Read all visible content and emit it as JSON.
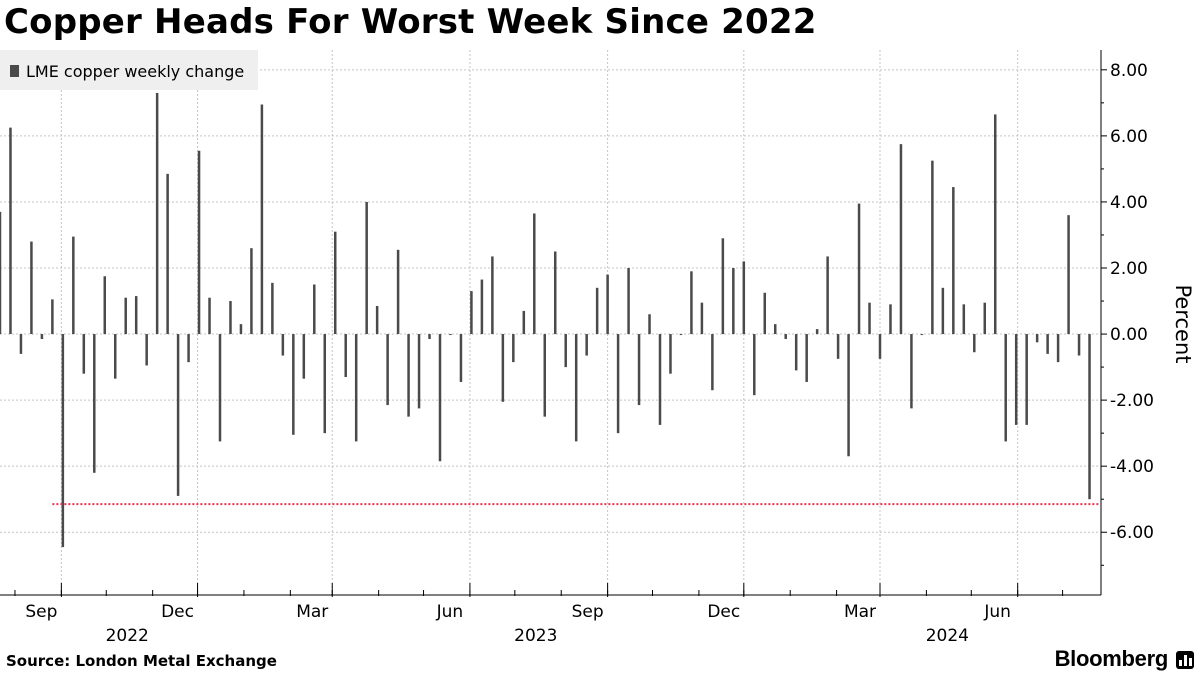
{
  "chart_data": {
    "type": "bar",
    "title": "Copper Heads For Worst Week Since 2022",
    "ylabel": "Percent",
    "source": "Source: London Metal Exchange",
    "brand": "Bloomberg",
    "legend": {
      "label": "LME copper weekly change",
      "placement": "top-left"
    },
    "ylim": [
      -7.9,
      8.6
    ],
    "xlim": [
      "2022-07-22",
      "2024-07-26"
    ],
    "y_ticks": [
      -6,
      -4,
      -2,
      0,
      2,
      4,
      6,
      8
    ],
    "y_tick_labels": [
      "-6.00",
      "-4.00",
      "-2.00",
      "0.00",
      "2.00",
      "4.00",
      "6.00",
      "8.00"
    ],
    "x_ticks": [
      {
        "date": "2022-09-01",
        "label": "Sep"
      },
      {
        "date": "2022-12-01",
        "label": "Dec"
      },
      {
        "date": "2023-03-01",
        "label": "Mar"
      },
      {
        "date": "2023-06-01",
        "label": "Jun"
      },
      {
        "date": "2023-09-01",
        "label": "Sep"
      },
      {
        "date": "2023-12-01",
        "label": "Dec"
      },
      {
        "date": "2024-03-01",
        "label": "Mar"
      },
      {
        "date": "2024-06-01",
        "label": "Jun"
      }
    ],
    "year_labels": [
      {
        "date": "2022-10-15",
        "label": "2022"
      },
      {
        "date": "2023-07-15",
        "label": "2023"
      },
      {
        "date": "2024-04-15",
        "label": "2024"
      }
    ],
    "grid": true,
    "reference_line": {
      "value": -5.15,
      "start": "2022-08-26",
      "color": "#e8334a"
    },
    "bar_color": "#4a4a4a",
    "x": [
      "2022-07-22",
      "2022-07-29",
      "2022-08-05",
      "2022-08-12",
      "2022-08-19",
      "2022-08-26",
      "2022-09-02",
      "2022-09-09",
      "2022-09-16",
      "2022-09-23",
      "2022-09-30",
      "2022-10-07",
      "2022-10-14",
      "2022-10-21",
      "2022-10-28",
      "2022-11-04",
      "2022-11-11",
      "2022-11-18",
      "2022-11-25",
      "2022-12-02",
      "2022-12-09",
      "2022-12-16",
      "2022-12-23",
      "2022-12-30",
      "2023-01-06",
      "2023-01-13",
      "2023-01-20",
      "2023-01-27",
      "2023-02-03",
      "2023-02-10",
      "2023-02-17",
      "2023-02-24",
      "2023-03-03",
      "2023-03-10",
      "2023-03-17",
      "2023-03-24",
      "2023-03-31",
      "2023-04-07",
      "2023-04-14",
      "2023-04-21",
      "2023-04-28",
      "2023-05-05",
      "2023-05-12",
      "2023-05-19",
      "2023-05-26",
      "2023-06-02",
      "2023-06-09",
      "2023-06-16",
      "2023-06-23",
      "2023-06-30",
      "2023-07-07",
      "2023-07-14",
      "2023-07-21",
      "2023-07-28",
      "2023-08-04",
      "2023-08-11",
      "2023-08-18",
      "2023-08-25",
      "2023-09-01",
      "2023-09-08",
      "2023-09-15",
      "2023-09-22",
      "2023-09-29",
      "2023-10-06",
      "2023-10-13",
      "2023-10-20",
      "2023-10-27",
      "2023-11-03",
      "2023-11-10",
      "2023-11-17",
      "2023-11-24",
      "2023-12-01",
      "2023-12-08",
      "2023-12-15",
      "2023-12-22",
      "2023-12-29",
      "2024-01-05",
      "2024-01-12",
      "2024-01-19",
      "2024-01-26",
      "2024-02-02",
      "2024-02-09",
      "2024-02-16",
      "2024-02-23",
      "2024-03-01",
      "2024-03-08",
      "2024-03-15",
      "2024-03-22",
      "2024-03-29",
      "2024-04-05",
      "2024-04-12",
      "2024-04-19",
      "2024-04-26",
      "2024-05-03",
      "2024-05-10",
      "2024-05-17",
      "2024-05-24",
      "2024-05-31",
      "2024-06-07",
      "2024-06-14",
      "2024-06-21",
      "2024-06-28",
      "2024-07-05",
      "2024-07-12",
      "2024-07-19"
    ],
    "series": [
      {
        "values": [
          3.7,
          6.25,
          -0.6,
          2.8,
          -0.15,
          1.05,
          -6.45,
          2.95,
          -1.2,
          -4.2,
          1.75,
          -1.35,
          1.1,
          1.15,
          -0.95,
          7.3,
          4.85,
          -4.9,
          -0.85,
          5.55,
          1.1,
          -3.25,
          1.0,
          0.3,
          2.6,
          6.95,
          1.55,
          -0.65,
          -3.05,
          -1.35,
          1.5,
          -3.0,
          3.1,
          -1.3,
          -3.25,
          4.0,
          0.85,
          -2.15,
          2.55,
          -2.5,
          -2.25,
          -0.15,
          -3.85,
          0.0,
          -1.45,
          1.3,
          1.65,
          2.35,
          -2.05,
          -0.85,
          0.7,
          3.65,
          -2.5,
          2.5,
          -1.0,
          -3.25,
          -0.65,
          1.4,
          1.8,
          -3.0,
          2.0,
          -2.15,
          0.6,
          -2.75,
          -1.2,
          0.0,
          1.9,
          0.95,
          -1.7,
          2.9,
          2.0,
          2.2,
          -1.85,
          1.25,
          0.3,
          -0.15,
          -1.1,
          -1.45,
          0.15,
          2.35,
          -0.75,
          -3.7,
          3.95,
          0.95,
          -0.75,
          0.9,
          5.75,
          -2.25,
          0.0,
          5.25,
          1.4,
          4.45,
          0.9,
          -0.55,
          0.95,
          6.65,
          -3.25,
          -2.75,
          -2.75,
          -0.25,
          -0.6,
          -0.85,
          3.6,
          -0.65,
          -5.0
        ]
      }
    ]
  }
}
